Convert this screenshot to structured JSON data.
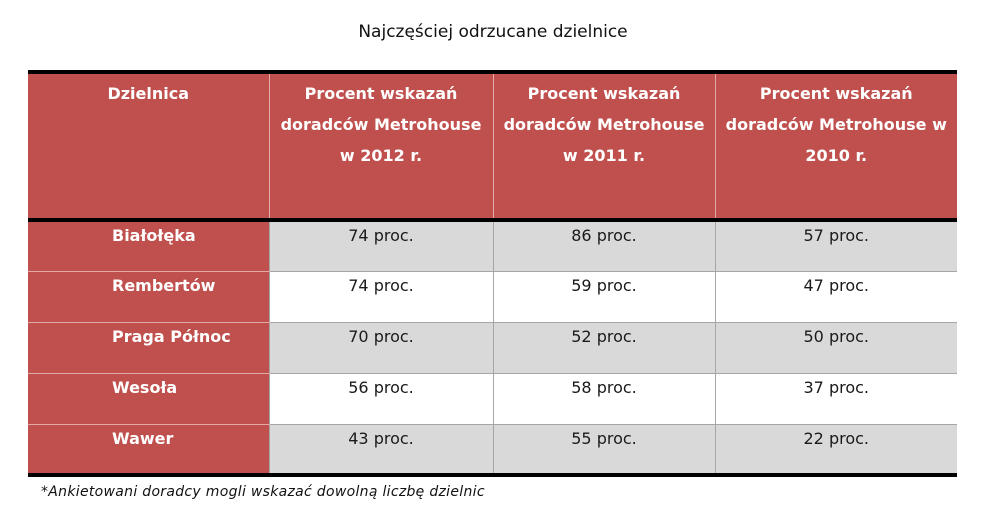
{
  "title": "Najczęściej odrzucane dzielnice",
  "colors": {
    "header_bg": "#c0504d",
    "shaded_row_bg": "#d9d9d9",
    "plain_row_bg": "#ffffff",
    "border": "#000000"
  },
  "table": {
    "headers": [
      "Dzielnica",
      "Procent wskazań doradców Metrohouse w 2012 r.",
      "Procent wskazań doradców Metrohouse w 2011 r.",
      "Procent wskazań doradców Metrohouse w 2010 r."
    ],
    "rows": [
      {
        "district": "Białołęka",
        "y2012": "74 proc.",
        "y2011": "86 proc.",
        "y2010": "57 proc."
      },
      {
        "district": "Rembertów",
        "y2012": "74 proc.",
        "y2011": "59 proc.",
        "y2010": "47 proc."
      },
      {
        "district": "Praga Północ",
        "y2012": "70 proc.",
        "y2011": "52 proc.",
        "y2010": "50 proc."
      },
      {
        "district": "Wesoła",
        "y2012": "56 proc.",
        "y2011": "58 proc.",
        "y2010": "37 proc."
      },
      {
        "district": "Wawer",
        "y2012": "43 proc.",
        "y2011": "55 proc.",
        "y2010": "22 proc."
      }
    ]
  },
  "footnote": "*Ankietowani doradcy mogli wskazać dowolną liczbę dzielnic"
}
